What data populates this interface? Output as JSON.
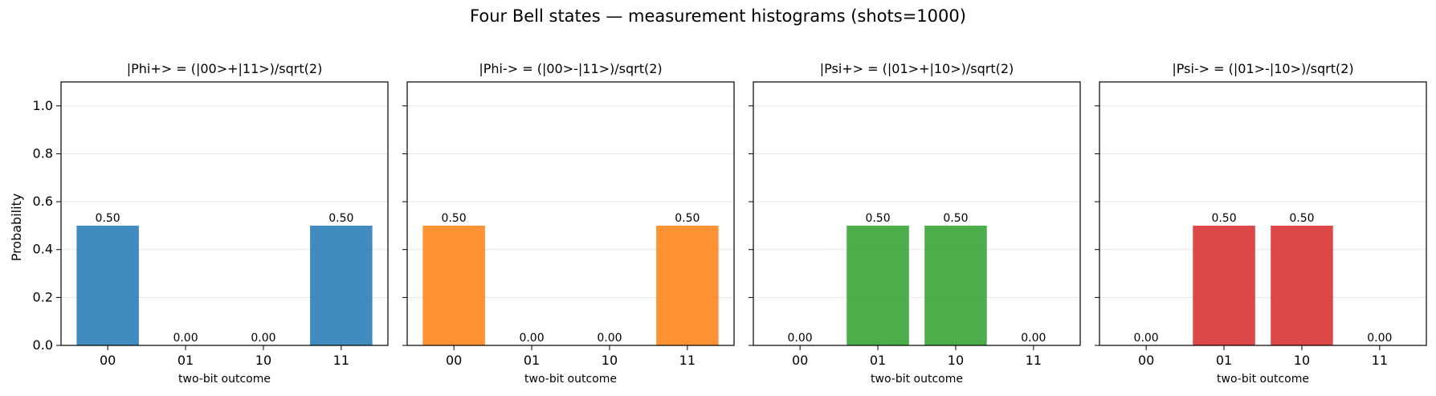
{
  "figure_title": "Four Bell states — measurement histograms (shots=1000)",
  "ylabel": "Probability",
  "xlabel": "two-bit outcome",
  "yticks": [
    "0.0",
    "0.2",
    "0.4",
    "0.6",
    "0.8",
    "1.0"
  ],
  "chart_data": [
    {
      "type": "bar",
      "title": "|Phi+> = (|00>+|11>)/sqrt(2)",
      "categories": [
        "00",
        "01",
        "10",
        "11"
      ],
      "values": [
        0.5,
        0.0,
        0.0,
        0.5
      ],
      "labels": [
        "0.50",
        "0.00",
        "0.00",
        "0.50"
      ],
      "color": "#1f77b4",
      "xlabel": "two-bit outcome",
      "ylabel": "Probability",
      "ylim": [
        0,
        1.1
      ],
      "grid": "y"
    },
    {
      "type": "bar",
      "title": "|Phi-> = (|00>-|11>)/sqrt(2)",
      "categories": [
        "00",
        "01",
        "10",
        "11"
      ],
      "values": [
        0.5,
        0.0,
        0.0,
        0.5
      ],
      "labels": [
        "0.50",
        "0.00",
        "0.00",
        "0.50"
      ],
      "color": "#ff7f0e",
      "xlabel": "two-bit outcome",
      "ylim": [
        0,
        1.1
      ],
      "grid": "y"
    },
    {
      "type": "bar",
      "title": "|Psi+>  = (|01>+|10>)/sqrt(2)",
      "categories": [
        "00",
        "01",
        "10",
        "11"
      ],
      "values": [
        0.0,
        0.5,
        0.5,
        0.0
      ],
      "labels": [
        "0.00",
        "0.50",
        "0.50",
        "0.00"
      ],
      "color": "#2ca02c",
      "xlabel": "two-bit outcome",
      "ylim": [
        0,
        1.1
      ],
      "grid": "y"
    },
    {
      "type": "bar",
      "title": "|Psi->  = (|01>-|10>)/sqrt(2)",
      "categories": [
        "00",
        "01",
        "10",
        "11"
      ],
      "values": [
        0.0,
        0.5,
        0.5,
        0.0
      ],
      "labels": [
        "0.00",
        "0.50",
        "0.50",
        "0.00"
      ],
      "color": "#d62728",
      "xlabel": "two-bit outcome",
      "ylim": [
        0,
        1.1
      ],
      "grid": "y"
    }
  ]
}
